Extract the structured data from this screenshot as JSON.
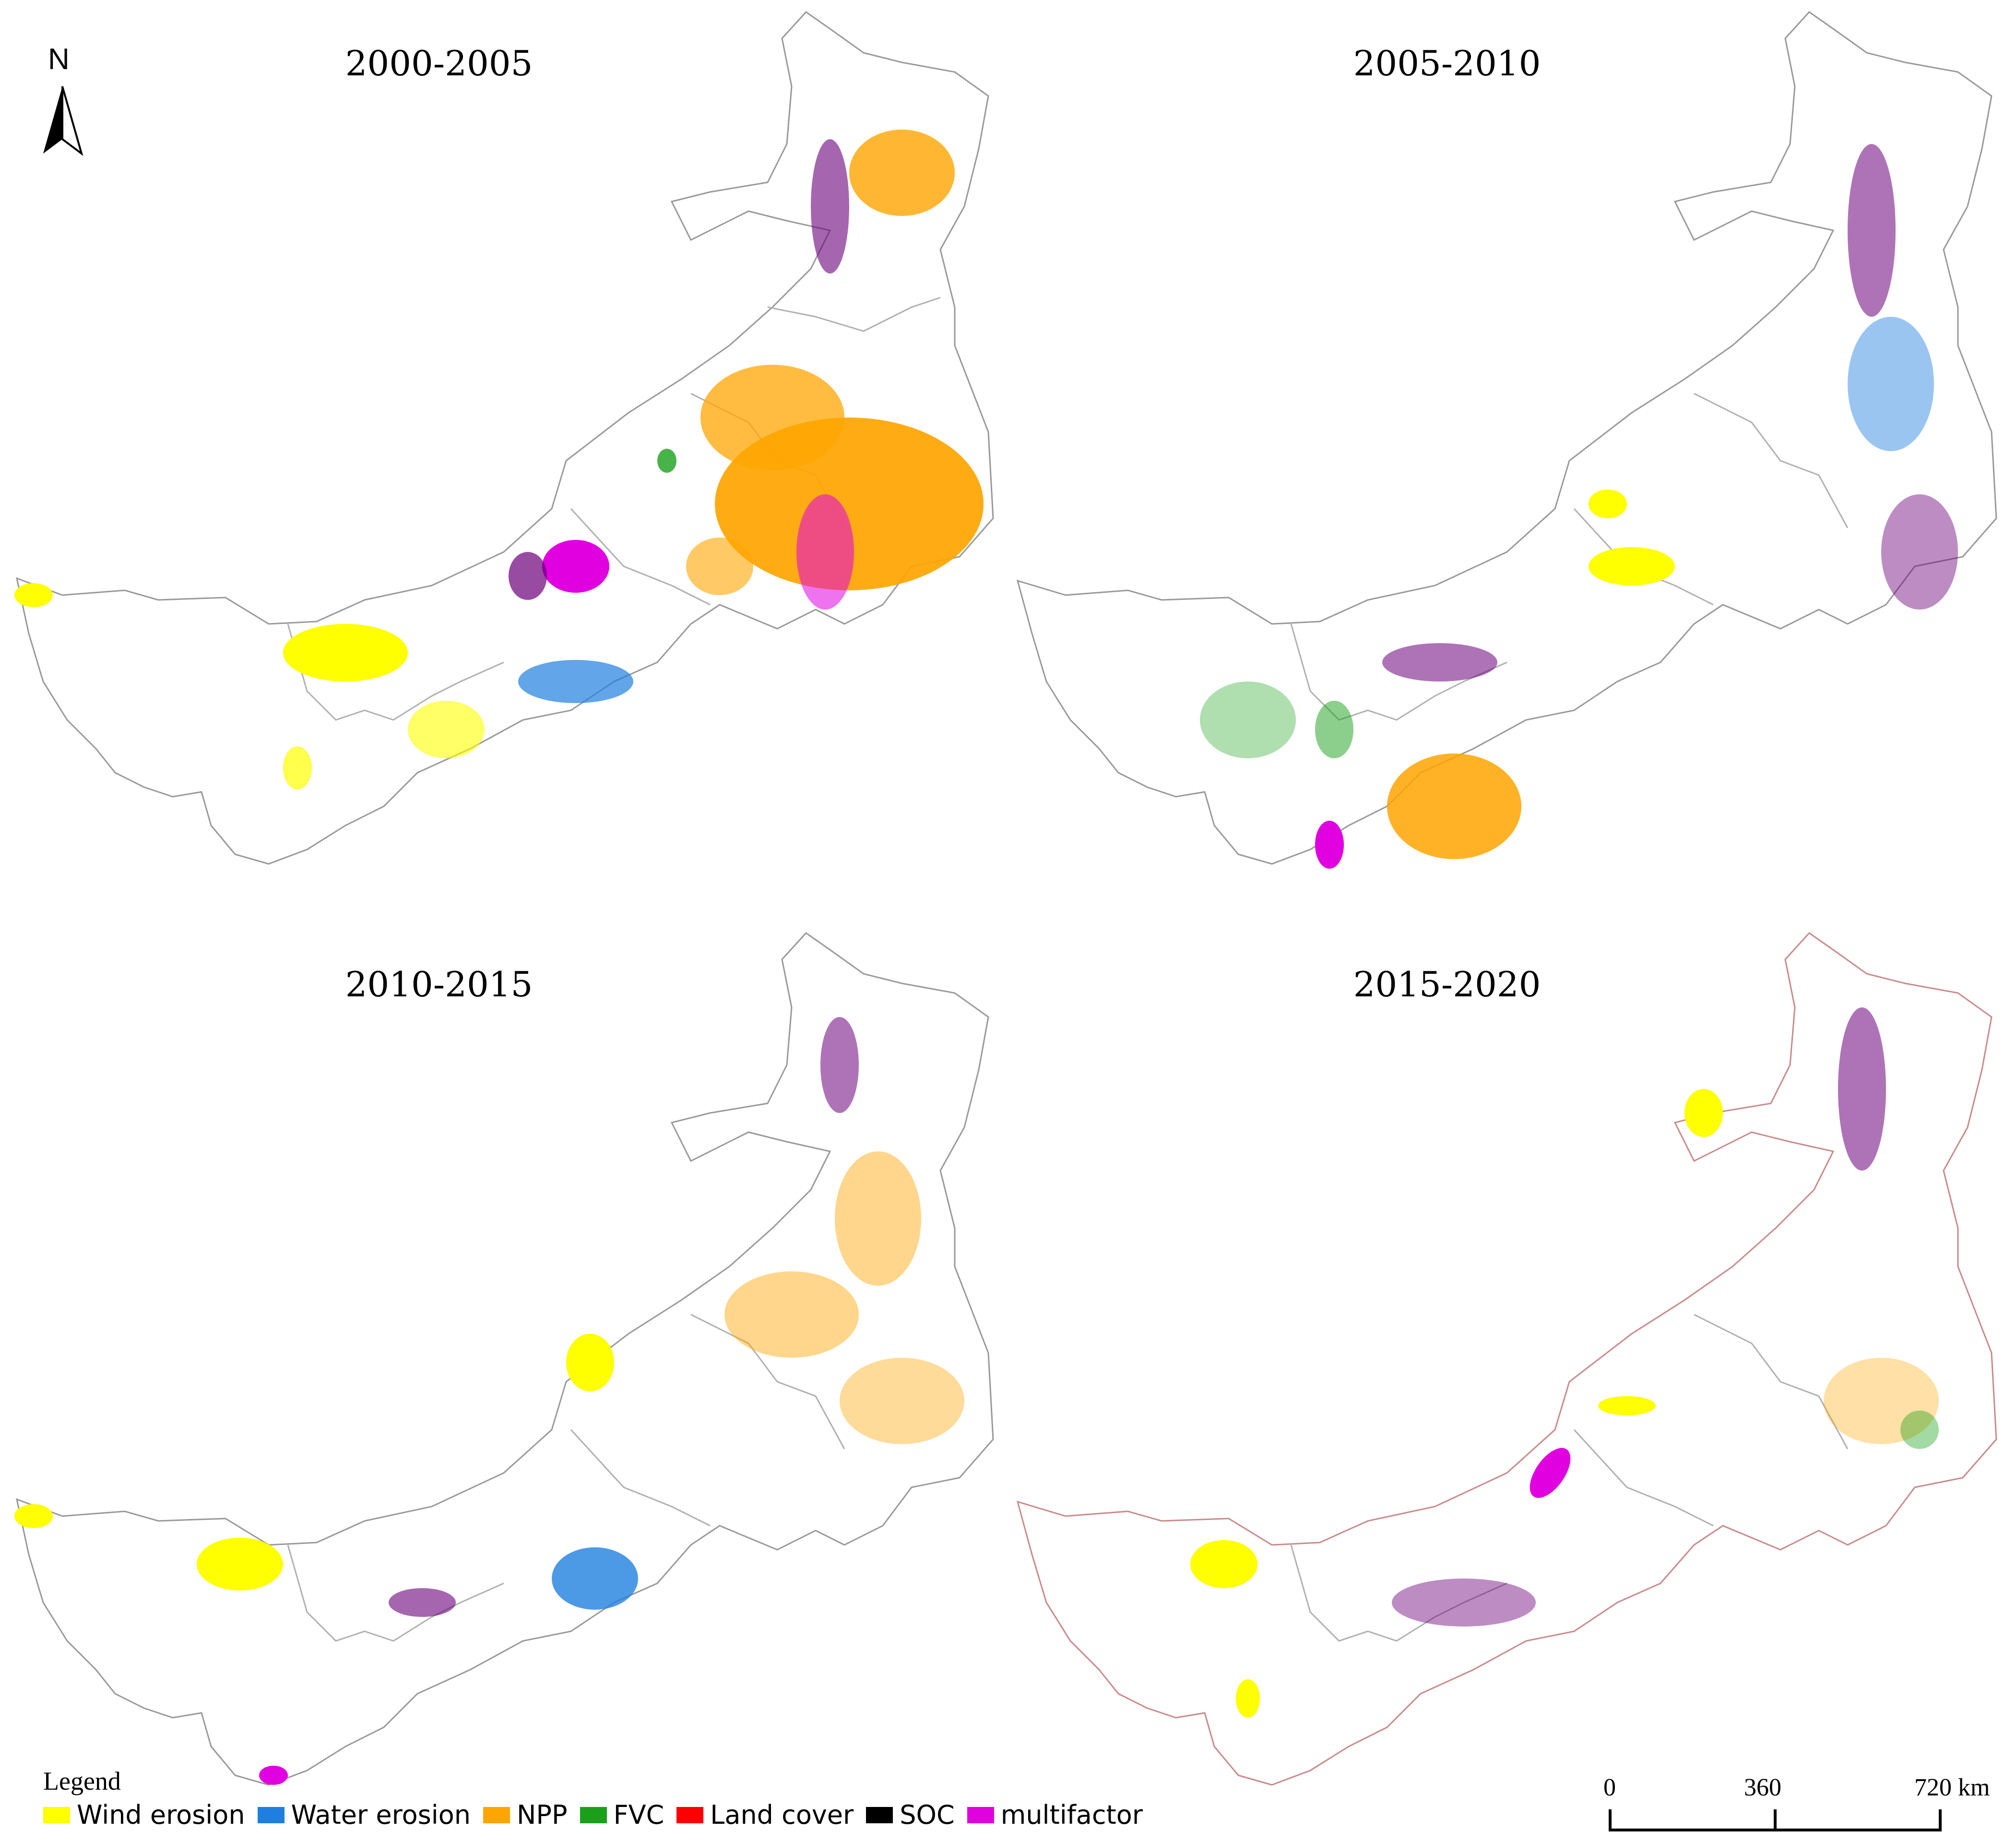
{
  "panels": [
    {
      "title": "2000-2005"
    },
    {
      "title": "2005-2010"
    },
    {
      "title": "2010-2015"
    },
    {
      "title": "2015-2020"
    }
  ],
  "north_arrow": {
    "label": "N"
  },
  "legend": {
    "title": "Legend",
    "items": [
      {
        "label": "Wind erosion",
        "color": "#ffff00"
      },
      {
        "label": "Water erosion",
        "color": "#1f7fe0"
      },
      {
        "label": "NPP",
        "color": "#ffa500"
      },
      {
        "label": "FVC",
        "color": "#1aa01a"
      },
      {
        "label": "Land cover",
        "color": "#ff0000"
      },
      {
        "label": "SOC",
        "color": "#000000"
      },
      {
        "label": "multifactor",
        "color": "#e000e0"
      }
    ]
  },
  "scale_bar": {
    "ticks": [
      "0",
      "360",
      "720 km"
    ]
  },
  "colors": {
    "boundary": "#999999",
    "dark_purple": "#6b007a"
  }
}
